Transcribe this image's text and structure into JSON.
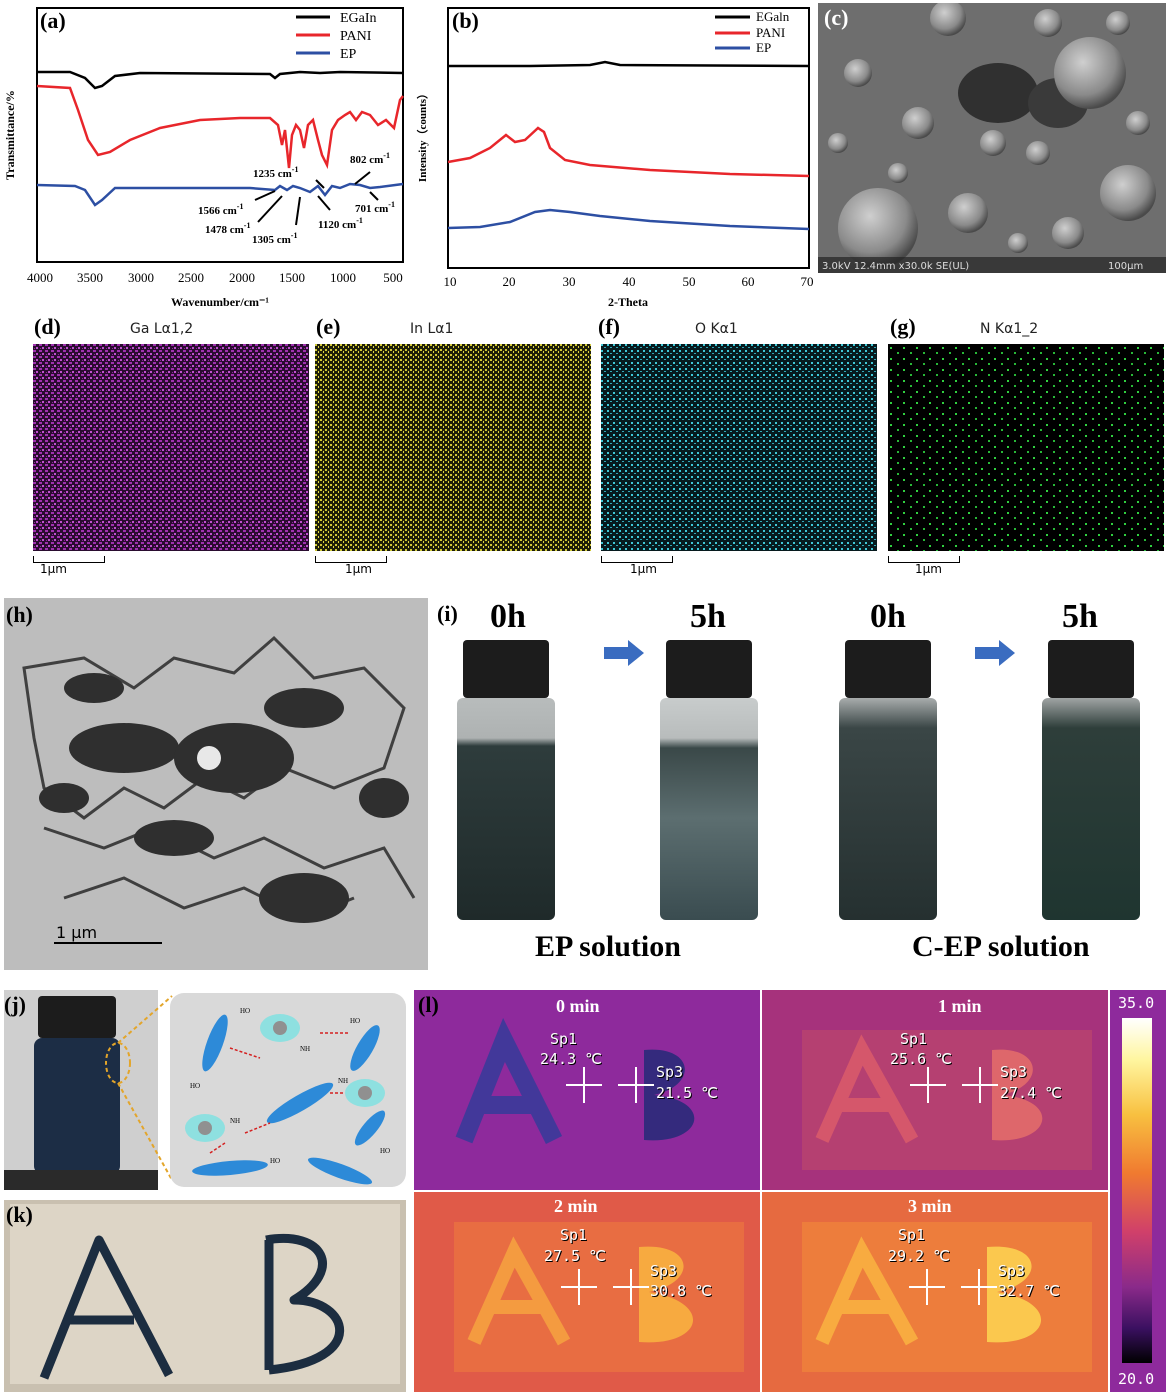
{
  "panels": {
    "a": "(a)",
    "b": "(b)",
    "c": "(c)",
    "d": "(d)",
    "e": "(e)",
    "f": "(f)",
    "g": "(g)",
    "h": "(h)",
    "i": "(i)",
    "j": "(j)",
    "k": "(k)",
    "l": "(l)"
  },
  "chart_data": [
    {
      "type": "line",
      "panel": "a",
      "xlabel": "Wavenumber/cm⁻¹",
      "ylabel": "Transmittance/%",
      "xlim": [
        4000,
        400
      ],
      "xticks": [
        4000,
        3500,
        3000,
        2500,
        2000,
        1500,
        1000,
        500
      ],
      "series": [
        {
          "name": "EGaIn",
          "color": "#000000"
        },
        {
          "name": "PANI",
          "color": "#e8262b"
        },
        {
          "name": "EP",
          "color": "#2d4fa3"
        }
      ],
      "annotations": [
        {
          "text": "1566 cm",
          "sup": "-1"
        },
        {
          "text": "1478 cm",
          "sup": "-1"
        },
        {
          "text": "1305 cm",
          "sup": "-1"
        },
        {
          "text": "1235 cm",
          "sup": "-1"
        },
        {
          "text": "1120 cm",
          "sup": "-1"
        },
        {
          "text": "802 cm",
          "sup": "-1"
        },
        {
          "text": "701 cm",
          "sup": "-1"
        }
      ]
    },
    {
      "type": "line",
      "panel": "b",
      "xlabel": "2-Theta",
      "ylabel": "Intensity（counts）",
      "xlim": [
        10,
        70
      ],
      "xticks": [
        10,
        20,
        30,
        40,
        50,
        60,
        70
      ],
      "series": [
        {
          "name": "EGaln",
          "color": "#000000"
        },
        {
          "name": "PANI",
          "color": "#e8262b"
        },
        {
          "name": "EP",
          "color": "#2d4fa3"
        }
      ]
    }
  ],
  "sem": {
    "info": "3.0kV 12.4mm x30.0k SE(UL)",
    "scale": "100µm"
  },
  "maps": [
    {
      "title": "Ga Lα1,2",
      "scale": "1µm",
      "color": "#b040c0"
    },
    {
      "title": "In Lα1",
      "scale": "1µm",
      "color": "#d8d030"
    },
    {
      "title": "O Kα1",
      "scale": "1µm",
      "color": "#40c8d8"
    },
    {
      "title": "N Kα1_2",
      "scale": "1µm",
      "color": "#30d040"
    }
  ],
  "tem": {
    "scale": "1 µm"
  },
  "vials": {
    "times": [
      "0h",
      "5h",
      "0h",
      "5h"
    ],
    "captions": [
      "EP solution",
      "C-EP solution"
    ]
  },
  "thermal": {
    "frames": [
      {
        "time": "0 min",
        "sp1": "Sp1",
        "t1": "24.3 ℃",
        "sp3": "Sp3",
        "t3": "21.5 ℃"
      },
      {
        "time": "1 min",
        "sp1": "Sp1",
        "t1": "25.6 ℃",
        "sp3": "Sp3",
        "t3": "27.4 ℃"
      },
      {
        "time": "2 min",
        "sp1": "Sp1",
        "t1": "27.5 ℃",
        "sp3": "Sp3",
        "t3": "30.8 ℃"
      },
      {
        "time": "3 min",
        "sp1": "Sp1",
        "t1": "29.2 ℃",
        "sp3": "Sp3",
        "t3": "32.7 ℃"
      }
    ],
    "scale_max": "35.0",
    "scale_min": "20.0"
  },
  "letters": {
    "a": "A",
    "b": "B"
  },
  "schematic": {
    "oh": "HO",
    "nh": "NH"
  }
}
